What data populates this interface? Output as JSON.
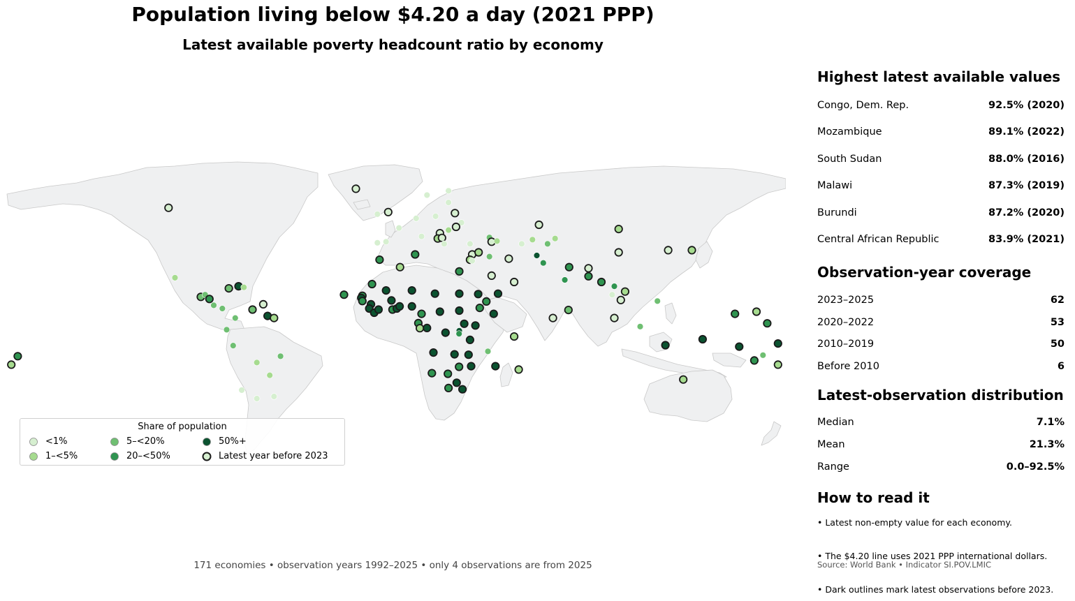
{
  "title": "Population living below $4.20 a day (2021 PPP)",
  "subtitle": "Latest available poverty headcount ratio by economy",
  "footnote": "171 economies • observation years 1992–2025 • only 4 observations are from 2025",
  "colors": {
    "lt1": "#d6efd0",
    "1to5": "#a6db8f",
    "5to20": "#6fbf72",
    "20to50": "#2f9450",
    "50plus": "#0b5330",
    "land": "#eff0f1",
    "outline_before_2023": "#1a1a1a"
  },
  "legend": {
    "title": "Share of population",
    "items": [
      {
        "label": "<1%",
        "color": "#d6efd0",
        "outlined": false
      },
      {
        "label": "1–<5%",
        "color": "#a6db8f",
        "outlined": false
      },
      {
        "label": "5–<20%",
        "color": "#6fbf72",
        "outlined": false
      },
      {
        "label": "20–<50%",
        "color": "#2f9450",
        "outlined": false
      },
      {
        "label": "50%+",
        "color": "#0b5330",
        "outlined": false
      },
      {
        "label": "Latest year before 2023",
        "color": "#d6efd0",
        "outlined": true
      }
    ]
  },
  "panel": {
    "highest": {
      "heading": "Highest latest available values",
      "rows": [
        {
          "name": "Congo, Dem. Rep.",
          "value": "92.5% (2020)"
        },
        {
          "name": "Mozambique",
          "value": "89.1% (2022)"
        },
        {
          "name": "South Sudan",
          "value": "88.0% (2016)"
        },
        {
          "name": "Malawi",
          "value": "87.3% (2019)"
        },
        {
          "name": "Burundi",
          "value": "87.2% (2020)"
        },
        {
          "name": "Central African Republic",
          "value": "83.9% (2021)"
        }
      ]
    },
    "coverage": {
      "heading": "Observation-year coverage",
      "rows": [
        {
          "name": "2023–2025",
          "value": "62"
        },
        {
          "name": "2020–2022",
          "value": "53"
        },
        {
          "name": "2010–2019",
          "value": "50"
        },
        {
          "name": "Before 2010",
          "value": "6"
        }
      ]
    },
    "distribution": {
      "heading": "Latest-observation distribution",
      "rows": [
        {
          "name": "Median",
          "value": "7.1%"
        },
        {
          "name": "Mean",
          "value": "21.3%"
        },
        {
          "name": "Range",
          "value": "0.0–92.5%"
        }
      ]
    },
    "howto": {
      "heading": "How to read it",
      "notes": [
        "• Latest non-empty value for each economy.",
        "• The $4.20 line uses 2021 PPP international dollars.",
        "• Dark outlines mark latest observations before 2023."
      ]
    },
    "source": "Source: World Bank  •  Indicator SI.POV.LMIC"
  },
  "map_data": {
    "projection": "equirectangular",
    "points": [
      {
        "lon": -105,
        "lat": 56,
        "cat": "lt1",
        "old": true
      },
      {
        "lon": -102,
        "lat": 23,
        "cat": "1to5",
        "old": false
      },
      {
        "lon": -90,
        "lat": 14,
        "cat": "5to20",
        "old": true
      },
      {
        "lon": -88,
        "lat": 15,
        "cat": "5to20",
        "old": false
      },
      {
        "lon": -86,
        "lat": 13,
        "cat": "20to50",
        "old": true
      },
      {
        "lon": -84,
        "lat": 10,
        "cat": "5to20",
        "old": false
      },
      {
        "lon": -80,
        "lat": 8.5,
        "cat": "5to20",
        "old": false
      },
      {
        "lon": -77,
        "lat": 18,
        "cat": "5to20",
        "old": true
      },
      {
        "lon": -72.5,
        "lat": 19,
        "cat": "50plus",
        "old": true
      },
      {
        "lon": -70,
        "lat": 18.5,
        "cat": "1to5",
        "old": false
      },
      {
        "lon": -74,
        "lat": 4,
        "cat": "5to20",
        "old": false
      },
      {
        "lon": -66,
        "lat": 8,
        "cat": "5to20",
        "old": true
      },
      {
        "lon": -61,
        "lat": 10.5,
        "cat": "lt1",
        "old": true
      },
      {
        "lon": -59,
        "lat": 5,
        "cat": "50plus",
        "old": true
      },
      {
        "lon": -56,
        "lat": 4,
        "cat": "1to5",
        "old": true
      },
      {
        "lon": -78,
        "lat": -1.5,
        "cat": "5to20",
        "old": false
      },
      {
        "lon": -75,
        "lat": -9,
        "cat": "5to20",
        "old": false
      },
      {
        "lon": -64,
        "lat": -17,
        "cat": "1to5",
        "old": false
      },
      {
        "lon": -53,
        "lat": -14,
        "cat": "5to20",
        "old": false
      },
      {
        "lon": -58,
        "lat": -23,
        "cat": "1to5",
        "old": false
      },
      {
        "lon": -56,
        "lat": -33,
        "cat": "lt1",
        "old": false
      },
      {
        "lon": -64,
        "lat": -34,
        "cat": "lt1",
        "old": false
      },
      {
        "lon": -71,
        "lat": -30,
        "cat": "lt1",
        "old": false
      },
      {
        "lon": -175,
        "lat": -14,
        "cat": "20to50",
        "old": true
      },
      {
        "lon": -178,
        "lat": -18,
        "cat": "1to5",
        "old": true
      },
      {
        "lon": -18,
        "lat": 65,
        "cat": "lt1",
        "old": true
      },
      {
        "lon": -8,
        "lat": 53,
        "cat": "lt1",
        "old": false
      },
      {
        "lon": -3,
        "lat": 54,
        "cat": "lt1",
        "old": true
      },
      {
        "lon": -4,
        "lat": 40,
        "cat": "lt1",
        "old": false
      },
      {
        "lon": -8,
        "lat": 39.5,
        "cat": "lt1",
        "old": false
      },
      {
        "lon": 2,
        "lat": 46.5,
        "cat": "lt1",
        "old": false
      },
      {
        "lon": 10,
        "lat": 51,
        "cat": "lt1",
        "old": false
      },
      {
        "lon": 12.5,
        "lat": 42.5,
        "cat": "lt1",
        "old": false
      },
      {
        "lon": 15,
        "lat": 62,
        "cat": "lt1",
        "old": false
      },
      {
        "lon": 25,
        "lat": 64,
        "cat": "lt1",
        "old": false
      },
      {
        "lon": 25,
        "lat": 58.5,
        "cat": "lt1",
        "old": false
      },
      {
        "lon": 19,
        "lat": 52,
        "cat": "lt1",
        "old": false
      },
      {
        "lon": 28,
        "lat": 53.5,
        "cat": "lt1",
        "old": true
      },
      {
        "lon": 31,
        "lat": 49,
        "cat": "lt1",
        "old": false
      },
      {
        "lon": 25,
        "lat": 45.5,
        "cat": "1to5",
        "old": false
      },
      {
        "lon": 21,
        "lat": 44,
        "cat": "lt1",
        "old": true
      },
      {
        "lon": 20,
        "lat": 41.5,
        "cat": "1to5",
        "old": true
      },
      {
        "lon": 22,
        "lat": 41.8,
        "cat": "lt1",
        "old": true
      },
      {
        "lon": 23,
        "lat": 39,
        "cat": "lt1",
        "old": false
      },
      {
        "lon": 28.5,
        "lat": 47,
        "cat": "lt1",
        "old": true
      },
      {
        "lon": 35,
        "lat": 39,
        "cat": "lt1",
        "old": false
      },
      {
        "lon": 44,
        "lat": 42,
        "cat": "5to20",
        "old": false
      },
      {
        "lon": 45,
        "lat": 40,
        "cat": "lt1",
        "old": true
      },
      {
        "lon": 47.5,
        "lat": 40.3,
        "cat": "1to5",
        "old": false
      },
      {
        "lon": 36,
        "lat": 34,
        "cat": "lt1",
        "old": true
      },
      {
        "lon": 35,
        "lat": 31.5,
        "cat": "1to5",
        "old": true
      },
      {
        "lon": 36,
        "lat": 31,
        "cat": "lt1",
        "old": false
      },
      {
        "lon": 39,
        "lat": 35,
        "cat": "1to5",
        "old": true
      },
      {
        "lon": 44,
        "lat": 33,
        "cat": "5to20",
        "old": false
      },
      {
        "lon": 53,
        "lat": 32,
        "cat": "lt1",
        "old": true
      },
      {
        "lon": 45,
        "lat": 24,
        "cat": "lt1",
        "old": true
      },
      {
        "lon": 48,
        "lat": 15.5,
        "cat": "50plus",
        "old": true
      },
      {
        "lon": 55.5,
        "lat": 21,
        "cat": "lt1",
        "old": true
      },
      {
        "lon": 67,
        "lat": 48,
        "cat": "lt1",
        "old": true
      },
      {
        "lon": 64,
        "lat": 41,
        "cat": "1to5",
        "old": false
      },
      {
        "lon": 59,
        "lat": 39,
        "cat": "lt1",
        "old": false
      },
      {
        "lon": 71,
        "lat": 39,
        "cat": "5to20",
        "old": false
      },
      {
        "lon": 74.5,
        "lat": 41.5,
        "cat": "1to5",
        "old": false
      },
      {
        "lon": 66,
        "lat": 33.5,
        "cat": "50plus",
        "old": false
      },
      {
        "lon": 69,
        "lat": 30,
        "cat": "20to50",
        "old": false
      },
      {
        "lon": 79,
        "lat": 22,
        "cat": "20to50",
        "old": false
      },
      {
        "lon": 81,
        "lat": 28,
        "cat": "20to50",
        "old": true
      },
      {
        "lon": 90,
        "lat": 27.5,
        "cat": "lt1",
        "old": true
      },
      {
        "lon": 90,
        "lat": 23.7,
        "cat": "20to50",
        "old": true
      },
      {
        "lon": 80.7,
        "lat": 7.8,
        "cat": "5to20",
        "old": true
      },
      {
        "lon": 73.5,
        "lat": 4,
        "cat": "lt1",
        "old": true
      },
      {
        "lon": 104,
        "lat": 46,
        "cat": "1to5",
        "old": true
      },
      {
        "lon": 104,
        "lat": 35,
        "cat": "lt1",
        "old": true
      },
      {
        "lon": 96,
        "lat": 21,
        "cat": "20to50",
        "old": true
      },
      {
        "lon": 102,
        "lat": 19,
        "cat": "20to50",
        "old": false
      },
      {
        "lon": 105,
        "lat": 12.5,
        "cat": "lt1",
        "old": true
      },
      {
        "lon": 107,
        "lat": 16.5,
        "cat": "1to5",
        "old": true
      },
      {
        "lon": 101,
        "lat": 15,
        "cat": "lt1",
        "old": false
      },
      {
        "lon": 102,
        "lat": 4,
        "cat": "lt1",
        "old": true
      },
      {
        "lon": 114,
        "lat": 0,
        "cat": "5to20",
        "old": false
      },
      {
        "lon": 122,
        "lat": 12,
        "cat": "5to20",
        "old": false
      },
      {
        "lon": 125.7,
        "lat": -8.8,
        "cat": "50plus",
        "old": true
      },
      {
        "lon": 127,
        "lat": 36,
        "cat": "lt1",
        "old": true
      },
      {
        "lon": 138,
        "lat": 36,
        "cat": "1to5",
        "old": true
      },
      {
        "lon": 143,
        "lat": -6,
        "cat": "50plus",
        "old": true
      },
      {
        "lon": 134,
        "lat": -25,
        "cat": "1to5",
        "old": true
      },
      {
        "lon": 160,
        "lat": -9.5,
        "cat": "50plus",
        "old": true
      },
      {
        "lon": 167,
        "lat": -16,
        "cat": "20to50",
        "old": true
      },
      {
        "lon": 178,
        "lat": -18,
        "cat": "1to5",
        "old": true
      },
      {
        "lon": 173,
        "lat": 1.5,
        "cat": "20to50",
        "old": true
      },
      {
        "lon": 168,
        "lat": 7,
        "cat": "1to5",
        "old": true
      },
      {
        "lon": 171,
        "lat": -13.5,
        "cat": "5to20",
        "old": false
      },
      {
        "lon": 158,
        "lat": 6,
        "cat": "20to50",
        "old": true
      },
      {
        "lon": 178,
        "lat": -8,
        "cat": "50plus",
        "old": true
      },
      {
        "lon": -23.5,
        "lat": 15,
        "cat": "20to50",
        "old": true
      },
      {
        "lon": -15,
        "lat": 14.5,
        "cat": "20to50",
        "old": true
      },
      {
        "lon": -15.5,
        "lat": 13.5,
        "cat": "50plus",
        "old": true
      },
      {
        "lon": -15,
        "lat": 12,
        "cat": "20to50",
        "old": true
      },
      {
        "lon": -10.5,
        "lat": 20,
        "cat": "20to50",
        "old": true
      },
      {
        "lon": -11,
        "lat": 10.5,
        "cat": "50plus",
        "old": true
      },
      {
        "lon": -11.8,
        "lat": 8.5,
        "cat": "50plus",
        "old": true
      },
      {
        "lon": -9.5,
        "lat": 6.5,
        "cat": "50plus",
        "old": true
      },
      {
        "lon": -7.5,
        "lat": 8,
        "cat": "50plus",
        "old": true
      },
      {
        "lon": -4,
        "lat": 17,
        "cat": "50plus",
        "old": true
      },
      {
        "lon": -1.5,
        "lat": 12.3,
        "cat": "50plus",
        "old": true
      },
      {
        "lon": -1,
        "lat": 8,
        "cat": "20to50",
        "old": true
      },
      {
        "lon": 1,
        "lat": 8.5,
        "cat": "50plus",
        "old": true
      },
      {
        "lon": 2.3,
        "lat": 9.5,
        "cat": "50plus",
        "old": true
      },
      {
        "lon": 8,
        "lat": 17,
        "cat": "50plus",
        "old": true
      },
      {
        "lon": 8,
        "lat": 9.5,
        "cat": "50plus",
        "old": true
      },
      {
        "lon": 18.7,
        "lat": 15.5,
        "cat": "50plus",
        "old": true
      },
      {
        "lon": 12.5,
        "lat": 6,
        "cat": "20to50",
        "old": true
      },
      {
        "lon": 11,
        "lat": 1.6,
        "cat": "20to50",
        "old": true
      },
      {
        "lon": 11.7,
        "lat": -0.8,
        "cat": "1to5",
        "old": true
      },
      {
        "lon": 15,
        "lat": -0.7,
        "cat": "50plus",
        "old": true
      },
      {
        "lon": 21,
        "lat": 7,
        "cat": "50plus",
        "old": true
      },
      {
        "lon": 30,
        "lat": 15.5,
        "cat": "50plus",
        "old": true
      },
      {
        "lon": 30,
        "lat": 7.5,
        "cat": "50plus",
        "old": true
      },
      {
        "lon": 39.5,
        "lat": 8.8,
        "cat": "20to50",
        "old": true
      },
      {
        "lon": 38.8,
        "lat": 15.3,
        "cat": "50plus",
        "old": true
      },
      {
        "lon": 42.6,
        "lat": 11.8,
        "cat": "20to50",
        "old": true
      },
      {
        "lon": 46,
        "lat": 6,
        "cat": "50plus",
        "old": true
      },
      {
        "lon": 30,
        "lat": 26,
        "cat": "20to50",
        "old": true
      },
      {
        "lon": 2.5,
        "lat": 28,
        "cat": "1to5",
        "old": true
      },
      {
        "lon": 9.5,
        "lat": 34,
        "cat": "20to50",
        "old": true
      },
      {
        "lon": -7,
        "lat": 31.5,
        "cat": "20to50",
        "old": true
      },
      {
        "lon": 37.5,
        "lat": 0.5,
        "cat": "50plus",
        "old": true
      },
      {
        "lon": 32.3,
        "lat": 1.3,
        "cat": "50plus",
        "old": true
      },
      {
        "lon": 30,
        "lat": -2,
        "cat": "50plus",
        "old": false
      },
      {
        "lon": 29.9,
        "lat": -3.4,
        "cat": "20to50",
        "old": false
      },
      {
        "lon": 35,
        "lat": -6.3,
        "cat": "50plus",
        "old": true
      },
      {
        "lon": 23.6,
        "lat": -2.9,
        "cat": "50plus",
        "old": true
      },
      {
        "lon": 18,
        "lat": -12.3,
        "cat": "50plus",
        "old": true
      },
      {
        "lon": 27.8,
        "lat": -13.1,
        "cat": "50plus",
        "old": true
      },
      {
        "lon": 34.3,
        "lat": -13.3,
        "cat": "50plus",
        "old": true
      },
      {
        "lon": 35.5,
        "lat": -18.7,
        "cat": "50plus",
        "old": true
      },
      {
        "lon": 29.9,
        "lat": -19,
        "cat": "20to50",
        "old": true
      },
      {
        "lon": 17.3,
        "lat": -22,
        "cat": "20to50",
        "old": true
      },
      {
        "lon": 24.7,
        "lat": -22.3,
        "cat": "20to50",
        "old": true
      },
      {
        "lon": 28.8,
        "lat": -26.5,
        "cat": "50plus",
        "old": true
      },
      {
        "lon": 25,
        "lat": -29,
        "cat": "20to50",
        "old": true
      },
      {
        "lon": 31.5,
        "lat": -29.6,
        "cat": "50plus",
        "old": true
      },
      {
        "lon": 46.8,
        "lat": -18.7,
        "cat": "50plus",
        "old": true
      },
      {
        "lon": 43.3,
        "lat": -11.7,
        "cat": "5to20",
        "old": false
      },
      {
        "lon": 55.5,
        "lat": -4.7,
        "cat": "1to5",
        "old": true
      },
      {
        "lon": 57.6,
        "lat": -20.3,
        "cat": "1to5",
        "old": true
      }
    ]
  }
}
